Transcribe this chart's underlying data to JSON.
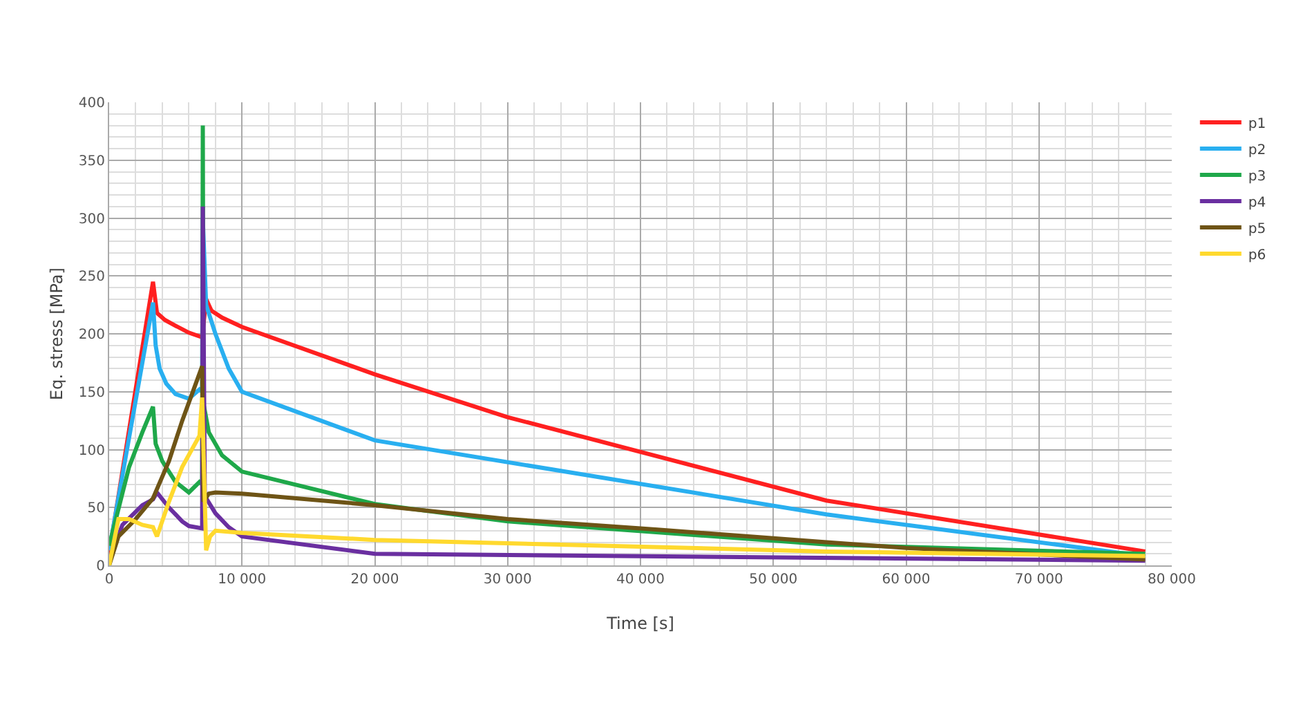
{
  "chart_data": {
    "type": "line",
    "xlabel": "Time [s]",
    "ylabel": "Eq. stress [MPa]",
    "xlim": [
      0,
      80000
    ],
    "ylim": [
      0,
      400
    ],
    "xticks": [
      0,
      {
        "value": 10000,
        "label": "10 000"
      },
      {
        "value": 20000,
        "label": "20 000"
      },
      {
        "value": 30000,
        "label": "30 000"
      },
      {
        "value": 40000,
        "label": "40 000"
      },
      {
        "value": 50000,
        "label": "50 000"
      },
      {
        "value": 60000,
        "label": "60 000"
      },
      {
        "value": 70000,
        "label": "70 000"
      },
      {
        "value": 80000,
        "label": "80 000"
      }
    ],
    "yticks": [
      0,
      50,
      100,
      150,
      200,
      250,
      300,
      350,
      400
    ],
    "grid": true,
    "legend": "top right",
    "marker": "none",
    "line_style": "solid",
    "series": [
      {
        "name": "p1",
        "color": "#ff2020",
        "x": [
          0,
          3300,
          3600,
          4200,
          5000,
          6000,
          7000,
          7300,
          7700,
          8500,
          10000,
          20000,
          30000,
          54000,
          78000
        ],
        "values": [
          10,
          245,
          218,
          212,
          207,
          201,
          197,
          230,
          220,
          214,
          206,
          165,
          128,
          56,
          12
        ]
      },
      {
        "name": "p2",
        "color": "#29aff0",
        "x": [
          0,
          3300,
          3500,
          3800,
          4300,
          5000,
          6000,
          6800,
          7000,
          7050,
          7300,
          8000,
          9000,
          10000,
          20000,
          54000,
          78000
        ],
        "values": [
          13,
          227,
          190,
          170,
          157,
          148,
          144,
          152,
          150,
          300,
          225,
          200,
          170,
          150,
          108,
          44,
          8
        ]
      },
      {
        "name": "p3",
        "color": "#1fa84a",
        "x": [
          0,
          1500,
          2500,
          3300,
          3500,
          4000,
          5000,
          6000,
          6800,
          7000,
          7050,
          7100,
          7500,
          8500,
          10000,
          20000,
          30000,
          54000,
          78000
        ],
        "values": [
          17,
          85,
          115,
          137,
          105,
          90,
          72,
          63,
          72,
          70,
          380,
          140,
          115,
          95,
          81,
          53,
          38,
          18,
          10
        ]
      },
      {
        "name": "p4",
        "color": "#6a2fa0",
        "x": [
          0,
          1000,
          2500,
          3300,
          3600,
          4500,
          5500,
          6000,
          7000,
          7050,
          7200,
          8000,
          9000,
          10000,
          20000,
          78000
        ],
        "values": [
          5,
          35,
          52,
          57,
          63,
          50,
          38,
          34,
          32,
          310,
          60,
          45,
          33,
          25,
          10,
          4
        ]
      },
      {
        "name": "p5",
        "color": "#6e5416",
        "x": [
          0,
          700,
          2000,
          3300,
          4500,
          5500,
          7000,
          7100,
          7500,
          8000,
          10000,
          20000,
          30000,
          40000,
          54000,
          60000,
          78000
        ],
        "values": [
          0,
          25,
          40,
          58,
          90,
          125,
          172,
          55,
          62,
          63,
          62,
          52,
          40,
          32,
          20,
          15,
          5
        ]
      },
      {
        "name": "p6",
        "color": "#ffd92e",
        "x": [
          0,
          700,
          1500,
          2500,
          3300,
          3600,
          4500,
          5500,
          6800,
          7000,
          7300,
          7600,
          8000,
          10000,
          20000,
          54000,
          78000
        ],
        "values": [
          0,
          40,
          40,
          35,
          33,
          25,
          55,
          85,
          112,
          145,
          13,
          25,
          30,
          28,
          22,
          12,
          8
        ]
      }
    ]
  }
}
